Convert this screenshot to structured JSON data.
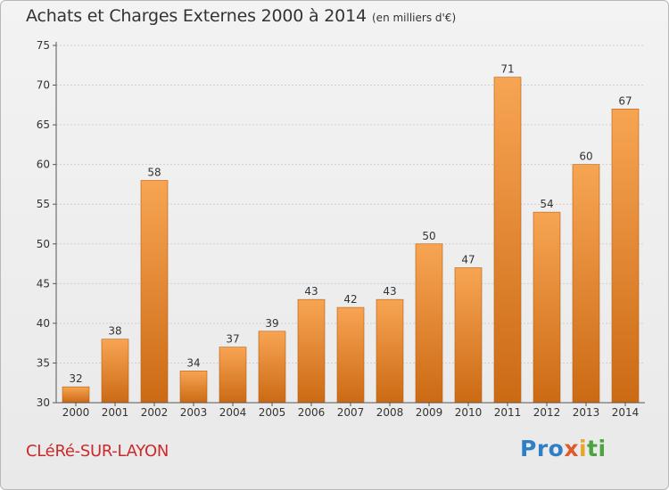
{
  "header": {
    "title": "Achats et Charges Externes 2000 à 2014",
    "subtitle": "(en milliers d'€)"
  },
  "footer": {
    "commune": "CLéRé-SUR-LAYON",
    "brand": {
      "p1": "Pro",
      "p2": "x",
      "p3": "i",
      "p4": "ti"
    }
  },
  "colors": {
    "bar_top": "#f7a553",
    "bar_bottom": "#cc6a14",
    "bar_edge": "#b85e10",
    "grid": "#cfcfcf",
    "axis": "#555555",
    "commune": "#cc2a2a"
  },
  "chart_data": {
    "type": "bar",
    "title": "Achats et Charges Externes 2000 à 2014",
    "subtitle": "(en milliers d'€)",
    "categories": [
      "2000",
      "2001",
      "2002",
      "2003",
      "2004",
      "2005",
      "2006",
      "2007",
      "2008",
      "2009",
      "2010",
      "2011",
      "2012",
      "2013",
      "2014"
    ],
    "values": [
      32,
      38,
      58,
      34,
      37,
      39,
      43,
      42,
      43,
      50,
      47,
      71,
      54,
      60,
      67
    ],
    "ylim": [
      30,
      75
    ],
    "yticks": [
      30,
      35,
      40,
      45,
      50,
      55,
      60,
      65,
      70,
      75
    ],
    "xlabel": "",
    "ylabel": "",
    "grid": true,
    "legend": "none"
  }
}
